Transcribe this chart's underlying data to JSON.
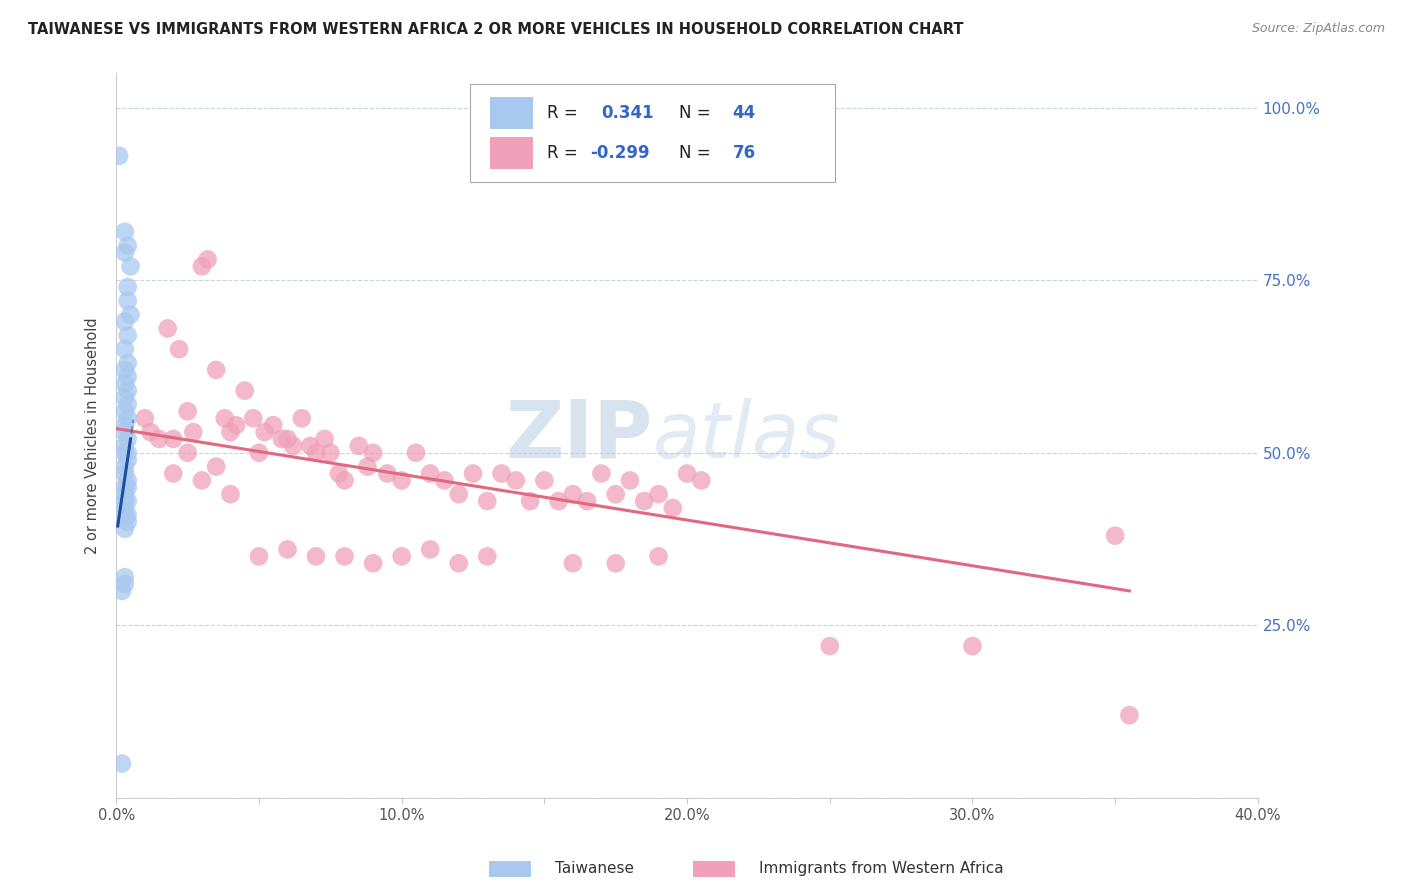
{
  "title": "TAIWANESE VS IMMIGRANTS FROM WESTERN AFRICA 2 OR MORE VEHICLES IN HOUSEHOLD CORRELATION CHART",
  "source": "Source: ZipAtlas.com",
  "ylabel": "2 or more Vehicles in Household",
  "xlim": [
    0.0,
    0.4
  ],
  "ylim": [
    0.0,
    1.05
  ],
  "xticks": [
    0.0,
    0.05,
    0.1,
    0.15,
    0.2,
    0.25,
    0.3,
    0.35,
    0.4
  ],
  "xticklabels": [
    "0.0%",
    "",
    "10.0%",
    "",
    "20.0%",
    "",
    "30.0%",
    "",
    "40.0%"
  ],
  "yticks_right": [
    0.25,
    0.5,
    0.75,
    1.0
  ],
  "yticklabels_right": [
    "25.0%",
    "50.0%",
    "75.0%",
    "100.0%"
  ],
  "r_taiwanese": 0.341,
  "n_taiwanese": 44,
  "r_western_africa": -0.299,
  "n_western_africa": 76,
  "taiwanese_color": "#a8c8f0",
  "western_africa_color": "#f0a0b8",
  "taiwanese_line_color": "#1a4fa0",
  "western_africa_line_color": "#e06880",
  "taiwanese_x": [
    0.001,
    0.003,
    0.004,
    0.003,
    0.005,
    0.004,
    0.004,
    0.005,
    0.003,
    0.004,
    0.003,
    0.004,
    0.003,
    0.004,
    0.003,
    0.004,
    0.003,
    0.004,
    0.003,
    0.004,
    0.003,
    0.003,
    0.004,
    0.003,
    0.004,
    0.003,
    0.004,
    0.003,
    0.003,
    0.004,
    0.003,
    0.004,
    0.003,
    0.004,
    0.003,
    0.003,
    0.004,
    0.003,
    0.004,
    0.003,
    0.003,
    0.003,
    0.002,
    0.002
  ],
  "taiwanese_y": [
    0.93,
    0.82,
    0.8,
    0.79,
    0.77,
    0.74,
    0.72,
    0.7,
    0.69,
    0.67,
    0.65,
    0.63,
    0.62,
    0.61,
    0.6,
    0.59,
    0.58,
    0.57,
    0.56,
    0.55,
    0.54,
    0.53,
    0.52,
    0.51,
    0.5,
    0.5,
    0.49,
    0.48,
    0.47,
    0.46,
    0.45,
    0.45,
    0.44,
    0.43,
    0.43,
    0.42,
    0.41,
    0.41,
    0.4,
    0.39,
    0.32,
    0.31,
    0.3,
    0.05
  ],
  "western_africa_x": [
    0.01,
    0.012,
    0.015,
    0.018,
    0.02,
    0.022,
    0.025,
    0.027,
    0.03,
    0.032,
    0.035,
    0.038,
    0.04,
    0.042,
    0.045,
    0.048,
    0.05,
    0.052,
    0.055,
    0.058,
    0.06,
    0.062,
    0.065,
    0.068,
    0.07,
    0.073,
    0.075,
    0.078,
    0.08,
    0.085,
    0.088,
    0.09,
    0.095,
    0.1,
    0.105,
    0.11,
    0.115,
    0.12,
    0.125,
    0.13,
    0.135,
    0.14,
    0.145,
    0.15,
    0.155,
    0.16,
    0.165,
    0.17,
    0.175,
    0.18,
    0.185,
    0.19,
    0.195,
    0.2,
    0.05,
    0.06,
    0.07,
    0.08,
    0.09,
    0.1,
    0.11,
    0.12,
    0.13,
    0.02,
    0.025,
    0.03,
    0.035,
    0.04,
    0.16,
    0.175,
    0.19,
    0.205,
    0.25,
    0.3,
    0.35,
    0.355
  ],
  "western_africa_y": [
    0.55,
    0.53,
    0.52,
    0.68,
    0.52,
    0.65,
    0.56,
    0.53,
    0.77,
    0.78,
    0.62,
    0.55,
    0.53,
    0.54,
    0.59,
    0.55,
    0.5,
    0.53,
    0.54,
    0.52,
    0.52,
    0.51,
    0.55,
    0.51,
    0.5,
    0.52,
    0.5,
    0.47,
    0.46,
    0.51,
    0.48,
    0.5,
    0.47,
    0.46,
    0.5,
    0.47,
    0.46,
    0.44,
    0.47,
    0.43,
    0.47,
    0.46,
    0.43,
    0.46,
    0.43,
    0.44,
    0.43,
    0.47,
    0.44,
    0.46,
    0.43,
    0.44,
    0.42,
    0.47,
    0.35,
    0.36,
    0.35,
    0.35,
    0.34,
    0.35,
    0.36,
    0.34,
    0.35,
    0.47,
    0.5,
    0.46,
    0.48,
    0.44,
    0.34,
    0.34,
    0.35,
    0.46,
    0.22,
    0.22,
    0.38,
    0.12
  ],
  "wa_trend_x0": 0.0,
  "wa_trend_y0": 0.535,
  "wa_trend_x1": 0.355,
  "wa_trend_y1": 0.3,
  "tw_trend_x0": 0.0,
  "tw_trend_y0": 0.38,
  "tw_trend_x1": 0.005,
  "tw_trend_y1": 0.52,
  "tw_trend_dash_x0": -0.001,
  "tw_trend_dash_y0": 0.3,
  "legend_label_tw": "Taiwanese",
  "legend_label_wa": "Immigrants from Western Africa"
}
